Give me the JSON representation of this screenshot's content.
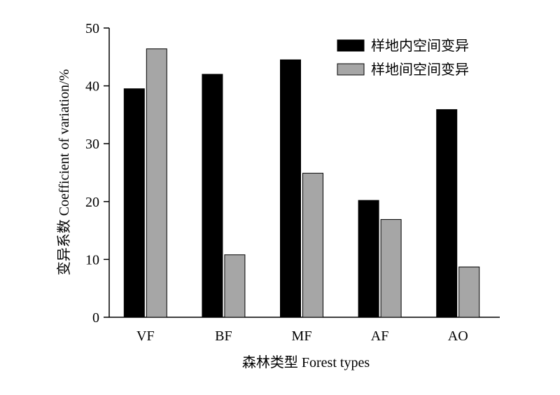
{
  "chart_data": {
    "type": "bar",
    "categories": [
      "VF",
      "BF",
      "MF",
      "AF",
      "AO"
    ],
    "series": [
      {
        "name": "样地内空间变异",
        "values": [
          39.5,
          42.0,
          44.5,
          20.2,
          35.9
        ],
        "color": "#000000"
      },
      {
        "name": "样地间空间变异",
        "values": [
          46.4,
          10.8,
          24.9,
          16.9,
          8.7
        ],
        "color": "#a6a6a6"
      }
    ],
    "title": "",
    "xlabel": "森林类型 Forest types",
    "ylabel": "变异系数 Coefficient of variation/%",
    "ylim": [
      0,
      50
    ],
    "yticks": [
      0,
      10,
      20,
      30,
      40,
      50
    ],
    "grid": false,
    "legend_position": "top-right"
  }
}
